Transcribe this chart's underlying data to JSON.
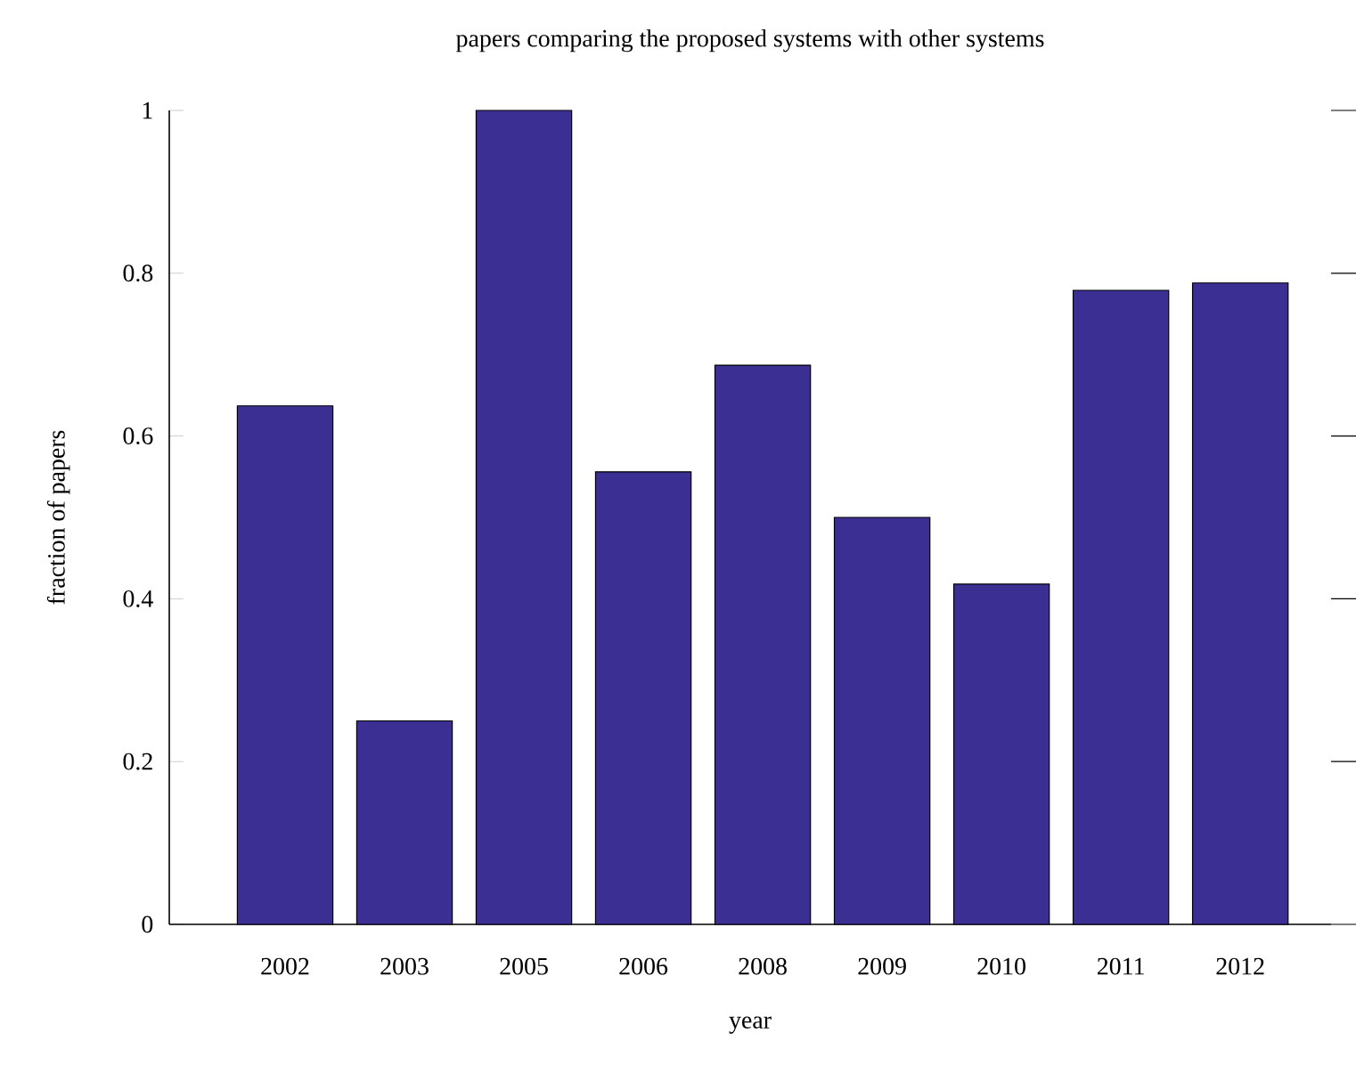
{
  "chart_data": {
    "type": "bar",
    "title": "papers comparing the proposed systems with other systems",
    "xlabel": "year",
    "ylabel": "fraction of papers",
    "categories": [
      "2002",
      "2003",
      "2005",
      "2006",
      "2008",
      "2009",
      "2010",
      "2011",
      "2012"
    ],
    "values": [
      0.637,
      0.25,
      1.0,
      0.556,
      0.687,
      0.5,
      0.418,
      0.779,
      0.788
    ],
    "color": "#3b2f94",
    "ylim": [
      0,
      1
    ],
    "yticks": [
      0,
      0.2,
      0.4,
      0.6,
      0.8,
      1
    ]
  }
}
